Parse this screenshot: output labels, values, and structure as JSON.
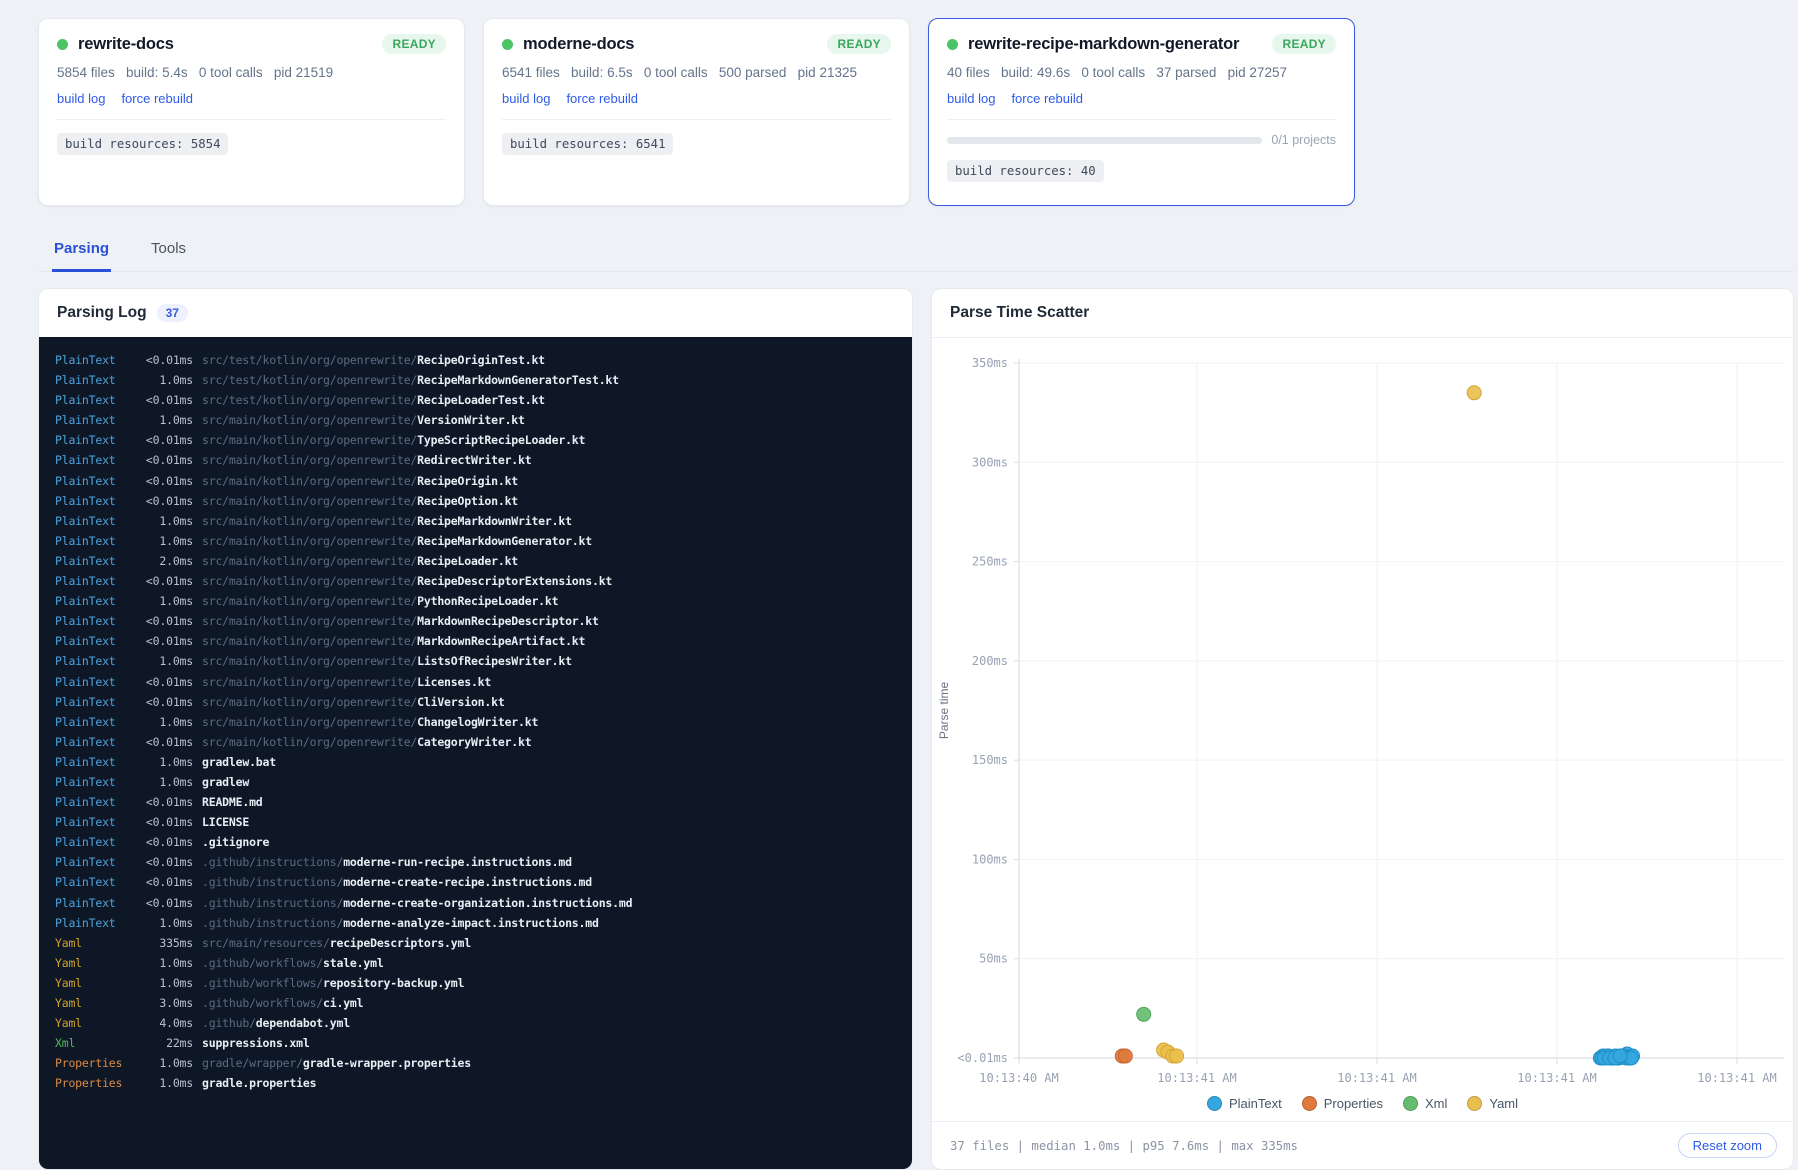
{
  "colors": {
    "accent_blue": "#2b50d8",
    "link_blue": "#2d5be8",
    "ready_green": "#3aa85c",
    "status_dot_green": "#4cc364",
    "log_bg": "#0e1726",
    "log_type_plaintext": "#4da3dc",
    "log_type_yaml": "#cfa428",
    "log_type_xml": "#57b85f",
    "log_type_properties": "#db8a44",
    "series_plaintext": "#35a7e0",
    "series_properties": "#e0793c",
    "series_xml": "#67bd6f",
    "series_yaml": "#eabf4e"
  },
  "projects": [
    {
      "name": "rewrite-docs",
      "status": "READY",
      "stats": [
        "5854 files",
        "build: 5.4s",
        "0 tool calls",
        "pid 21519"
      ],
      "links": [
        "build log",
        "force rebuild"
      ],
      "resources_label": "build resources: 5854"
    },
    {
      "name": "moderne-docs",
      "status": "READY",
      "stats": [
        "6541 files",
        "build: 6.5s",
        "0 tool calls",
        "500 parsed",
        "pid 21325"
      ],
      "links": [
        "build log",
        "force rebuild"
      ],
      "resources_label": "build resources: 6541"
    },
    {
      "name": "rewrite-recipe-markdown-generator",
      "status": "READY",
      "stats": [
        "40 files",
        "build: 49.6s",
        "0 tool calls",
        "37 parsed",
        "pid 27257"
      ],
      "links": [
        "build log",
        "force rebuild"
      ],
      "progress_label": "0/1 projects",
      "resources_label": "build resources: 40"
    }
  ],
  "tabs": [
    {
      "label": "Parsing",
      "active": true
    },
    {
      "label": "Tools",
      "active": false
    }
  ],
  "parsing_log": {
    "title": "Parsing Log",
    "count": "37",
    "entries": [
      {
        "type": "PlainText",
        "time": "<0.01ms",
        "dir": "src/test/kotlin/org/openrewrite/",
        "file": "RecipeOriginTest.kt"
      },
      {
        "type": "PlainText",
        "time": "1.0ms",
        "dir": "src/test/kotlin/org/openrewrite/",
        "file": "RecipeMarkdownGeneratorTest.kt"
      },
      {
        "type": "PlainText",
        "time": "<0.01ms",
        "dir": "src/test/kotlin/org/openrewrite/",
        "file": "RecipeLoaderTest.kt"
      },
      {
        "type": "PlainText",
        "time": "1.0ms",
        "dir": "src/main/kotlin/org/openrewrite/",
        "file": "VersionWriter.kt"
      },
      {
        "type": "PlainText",
        "time": "<0.01ms",
        "dir": "src/main/kotlin/org/openrewrite/",
        "file": "TypeScriptRecipeLoader.kt"
      },
      {
        "type": "PlainText",
        "time": "<0.01ms",
        "dir": "src/main/kotlin/org/openrewrite/",
        "file": "RedirectWriter.kt"
      },
      {
        "type": "PlainText",
        "time": "<0.01ms",
        "dir": "src/main/kotlin/org/openrewrite/",
        "file": "RecipeOrigin.kt"
      },
      {
        "type": "PlainText",
        "time": "<0.01ms",
        "dir": "src/main/kotlin/org/openrewrite/",
        "file": "RecipeOption.kt"
      },
      {
        "type": "PlainText",
        "time": "1.0ms",
        "dir": "src/main/kotlin/org/openrewrite/",
        "file": "RecipeMarkdownWriter.kt"
      },
      {
        "type": "PlainText",
        "time": "1.0ms",
        "dir": "src/main/kotlin/org/openrewrite/",
        "file": "RecipeMarkdownGenerator.kt"
      },
      {
        "type": "PlainText",
        "time": "2.0ms",
        "dir": "src/main/kotlin/org/openrewrite/",
        "file": "RecipeLoader.kt"
      },
      {
        "type": "PlainText",
        "time": "<0.01ms",
        "dir": "src/main/kotlin/org/openrewrite/",
        "file": "RecipeDescriptorExtensions.kt"
      },
      {
        "type": "PlainText",
        "time": "1.0ms",
        "dir": "src/main/kotlin/org/openrewrite/",
        "file": "PythonRecipeLoader.kt"
      },
      {
        "type": "PlainText",
        "time": "<0.01ms",
        "dir": "src/main/kotlin/org/openrewrite/",
        "file": "MarkdownRecipeDescriptor.kt"
      },
      {
        "type": "PlainText",
        "time": "<0.01ms",
        "dir": "src/main/kotlin/org/openrewrite/",
        "file": "MarkdownRecipeArtifact.kt"
      },
      {
        "type": "PlainText",
        "time": "1.0ms",
        "dir": "src/main/kotlin/org/openrewrite/",
        "file": "ListsOfRecipesWriter.kt"
      },
      {
        "type": "PlainText",
        "time": "<0.01ms",
        "dir": "src/main/kotlin/org/openrewrite/",
        "file": "Licenses.kt"
      },
      {
        "type": "PlainText",
        "time": "<0.01ms",
        "dir": "src/main/kotlin/org/openrewrite/",
        "file": "CliVersion.kt"
      },
      {
        "type": "PlainText",
        "time": "1.0ms",
        "dir": "src/main/kotlin/org/openrewrite/",
        "file": "ChangelogWriter.kt"
      },
      {
        "type": "PlainText",
        "time": "<0.01ms",
        "dir": "src/main/kotlin/org/openrewrite/",
        "file": "CategoryWriter.kt"
      },
      {
        "type": "PlainText",
        "time": "1.0ms",
        "dir": "",
        "file": "gradlew.bat"
      },
      {
        "type": "PlainText",
        "time": "1.0ms",
        "dir": "",
        "file": "gradlew"
      },
      {
        "type": "PlainText",
        "time": "<0.01ms",
        "dir": "",
        "file": "README.md"
      },
      {
        "type": "PlainText",
        "time": "<0.01ms",
        "dir": "",
        "file": "LICENSE"
      },
      {
        "type": "PlainText",
        "time": "<0.01ms",
        "dir": "",
        "file": ".gitignore"
      },
      {
        "type": "PlainText",
        "time": "<0.01ms",
        "dir": ".github/instructions/",
        "file": "moderne-run-recipe.instructions.md"
      },
      {
        "type": "PlainText",
        "time": "<0.01ms",
        "dir": ".github/instructions/",
        "file": "moderne-create-recipe.instructions.md"
      },
      {
        "type": "PlainText",
        "time": "<0.01ms",
        "dir": ".github/instructions/",
        "file": "moderne-create-organization.instructions.md"
      },
      {
        "type": "PlainText",
        "time": "1.0ms",
        "dir": ".github/instructions/",
        "file": "moderne-analyze-impact.instructions.md"
      },
      {
        "type": "Yaml",
        "time": "335ms",
        "dir": "src/main/resources/",
        "file": "recipeDescriptors.yml"
      },
      {
        "type": "Yaml",
        "time": "1.0ms",
        "dir": ".github/workflows/",
        "file": "stale.yml"
      },
      {
        "type": "Yaml",
        "time": "1.0ms",
        "dir": ".github/workflows/",
        "file": "repository-backup.yml"
      },
      {
        "type": "Yaml",
        "time": "3.0ms",
        "dir": ".github/workflows/",
        "file": "ci.yml"
      },
      {
        "type": "Yaml",
        "time": "4.0ms",
        "dir": ".github/",
        "file": "dependabot.yml"
      },
      {
        "type": "Xml",
        "time": "22ms",
        "dir": "",
        "file": "suppressions.xml"
      },
      {
        "type": "Properties",
        "time": "1.0ms",
        "dir": "gradle/wrapper/",
        "file": "gradle-wrapper.properties"
      },
      {
        "type": "Properties",
        "time": "1.0ms",
        "dir": "",
        "file": "gradle.properties"
      }
    ]
  },
  "chart_data": {
    "type": "scatter",
    "title": "Parse Time Scatter",
    "ylabel": "Parse time",
    "ylim": [
      0,
      350
    ],
    "grid": true,
    "legend_position": "bottom",
    "y_ticks": [
      "350ms",
      "300ms",
      "250ms",
      "200ms",
      "150ms",
      "100ms",
      "50ms",
      "<0.01ms"
    ],
    "x_ticks": [
      "10:13:40 AM",
      "10:13:41 AM",
      "10:13:41 AM",
      "10:13:41 AM",
      "10:13:41 AM"
    ],
    "series": [
      {
        "name": "PlainText",
        "color": "#35a7e0",
        "stroke": "#1d8fc7",
        "points": [
          [
            0.76,
            0
          ],
          [
            0.7635,
            1
          ],
          [
            0.767,
            0
          ],
          [
            0.7705,
            1
          ],
          [
            0.774,
            0
          ],
          [
            0.7775,
            0
          ],
          [
            0.781,
            0
          ],
          [
            0.7845,
            0
          ],
          [
            0.788,
            1
          ],
          [
            0.7915,
            1
          ],
          [
            0.795,
            2
          ],
          [
            0.7985,
            0
          ],
          [
            0.802,
            1
          ],
          [
            0.762,
            0
          ],
          [
            0.7655,
            0
          ],
          [
            0.769,
            1
          ],
          [
            0.7725,
            0
          ],
          [
            0.776,
            0
          ],
          [
            0.7795,
            1
          ],
          [
            0.783,
            0
          ],
          [
            0.7865,
            1
          ],
          [
            0.79,
            1
          ],
          [
            0.7935,
            0
          ],
          [
            0.797,
            0
          ],
          [
            0.8005,
            0
          ],
          [
            0.765,
            0
          ],
          [
            0.772,
            0
          ],
          [
            0.779,
            0
          ],
          [
            0.786,
            1
          ]
        ]
      },
      {
        "name": "Properties",
        "color": "#e0793c",
        "stroke": "#c4642e",
        "points": [
          [
            0.135,
            1
          ],
          [
            0.139,
            1
          ]
        ]
      },
      {
        "name": "Xml",
        "color": "#67bd6f",
        "stroke": "#4ea558",
        "points": [
          [
            0.163,
            22
          ]
        ]
      },
      {
        "name": "Yaml",
        "color": "#eabf4e",
        "stroke": "#d4a52f",
        "points": [
          [
            0.595,
            335
          ],
          [
            0.189,
            4
          ],
          [
            0.1945,
            3
          ],
          [
            0.201,
            1
          ],
          [
            0.206,
            1
          ]
        ]
      }
    ],
    "footer_stats": "37 files | median 1.0ms | p95 7.6ms | max 335ms",
    "reset_button": "Reset zoom"
  }
}
